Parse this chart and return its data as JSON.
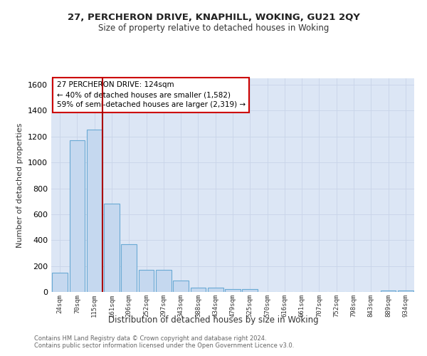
{
  "title1": "27, PERCHERON DRIVE, KNAPHILL, WOKING, GU21 2QY",
  "title2": "Size of property relative to detached houses in Woking",
  "xlabel": "Distribution of detached houses by size in Woking",
  "ylabel": "Number of detached properties",
  "categories": [
    "24sqm",
    "70sqm",
    "115sqm",
    "161sqm",
    "206sqm",
    "252sqm",
    "297sqm",
    "343sqm",
    "388sqm",
    "434sqm",
    "479sqm",
    "525sqm",
    "570sqm",
    "616sqm",
    "661sqm",
    "707sqm",
    "752sqm",
    "798sqm",
    "843sqm",
    "889sqm",
    "934sqm"
  ],
  "values": [
    150,
    1170,
    1255,
    680,
    370,
    170,
    170,
    90,
    35,
    35,
    22,
    20,
    0,
    0,
    0,
    0,
    0,
    0,
    0,
    12,
    12
  ],
  "bar_color": "#c5d8ef",
  "bar_edge_color": "#6aaad4",
  "property_line_x": 2.45,
  "annotation_text": "27 PERCHERON DRIVE: 124sqm\n← 40% of detached houses are smaller (1,582)\n59% of semi-detached houses are larger (2,319) →",
  "annotation_box_facecolor": "#ffffff",
  "annotation_box_edgecolor": "#cc0000",
  "vline_color": "#aa0000",
  "ylim": [
    0,
    1650
  ],
  "yticks": [
    0,
    200,
    400,
    600,
    800,
    1000,
    1200,
    1400,
    1600
  ],
  "grid_color": "#c8d4e8",
  "plot_bg_color": "#dce6f5",
  "fig_bg_color": "#ffffff",
  "footer1": "Contains HM Land Registry data © Crown copyright and database right 2024.",
  "footer2": "Contains public sector information licensed under the Open Government Licence v3.0."
}
